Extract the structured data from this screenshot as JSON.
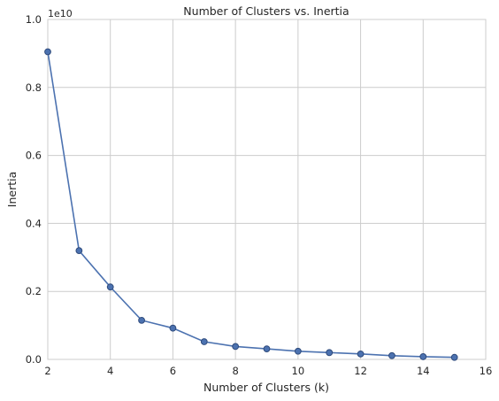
{
  "chart_data": {
    "type": "line",
    "title": "Number of Clusters vs. Inertia",
    "xlabel": "Number of Clusters (k)",
    "ylabel": "Inertia",
    "y_offset_label": "1e10",
    "x": [
      2,
      3,
      4,
      5,
      6,
      7,
      8,
      9,
      10,
      11,
      12,
      13,
      14,
      15
    ],
    "series": [
      {
        "values": [
          0.905,
          0.32,
          0.213,
          0.115,
          0.092,
          0.052,
          0.038,
          0.031,
          0.024,
          0.02,
          0.016,
          0.011,
          0.008,
          0.006
        ]
      }
    ],
    "xlim": [
      2,
      16
    ],
    "ylim": [
      0,
      1.0
    ],
    "x_ticks": [
      "2",
      "4",
      "6",
      "8",
      "10",
      "12",
      "14",
      "16"
    ],
    "y_ticks": [
      "0.0",
      "0.2",
      "0.4",
      "0.6",
      "0.8",
      "1.0"
    ],
    "grid": true,
    "marker": "circle",
    "line_color": "#4c72b0",
    "marker_edge_color": "#2f4b7c",
    "grid_color": "#cccccc"
  }
}
